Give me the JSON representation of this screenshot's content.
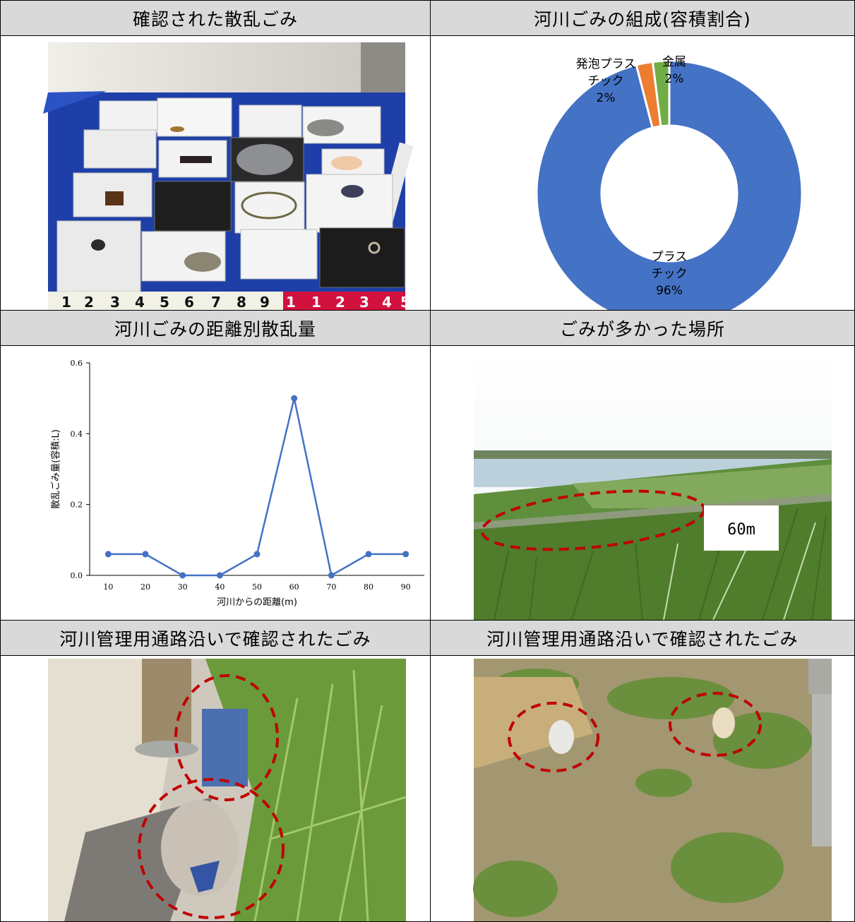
{
  "headers": {
    "r1_left": "確認された散乱ごみ",
    "r1_right": "河川ごみの組成(容積割合)",
    "r2_left": "河川ごみの距離別散乱量",
    "r2_right": "ごみが多かった場所",
    "r3_left": "河川管理用通路沿いで確認されたごみ",
    "r3_right": "河川管理用通路沿いで確認されたごみ"
  },
  "photo_labels": {
    "ruler_digits": [
      "1",
      "2",
      "3",
      "4",
      "5",
      "6",
      "7",
      "8",
      "9",
      "1",
      "1",
      "2",
      "3",
      "4",
      "5"
    ],
    "place_tag": "60m"
  },
  "colors": {
    "header_bg": "#d9d9d9",
    "plastic": "#4472c4",
    "foam": "#ed7d31",
    "metal": "#70ad47",
    "line": "#4472c4",
    "circle": "#c00000"
  },
  "chart_data": [
    {
      "type": "pie",
      "donut": true,
      "title": "",
      "slices": [
        {
          "label_lines": [
            "プラス",
            "チック",
            "96%"
          ],
          "value": 96,
          "color": "#4472c4"
        },
        {
          "label_lines": [
            "発泡プラス",
            "チック",
            "2%"
          ],
          "value": 2,
          "color": "#ed7d31"
        },
        {
          "label_lines": [
            "金属",
            "2%"
          ],
          "value": 2,
          "color": "#70ad47"
        }
      ]
    },
    {
      "type": "line",
      "title": "",
      "xlabel": "河川からの距離(m)",
      "ylabel": "散乱ごみ量(容積:L)",
      "x": [
        10,
        20,
        30,
        40,
        50,
        60,
        70,
        80,
        90
      ],
      "series": [
        {
          "values": [
            0.06,
            0.06,
            0.0,
            0.0,
            0.06,
            0.5,
            0.0,
            0.06,
            0.06
          ]
        }
      ],
      "ylim": [
        0,
        0.6
      ],
      "yticks": [
        "0.0",
        "0.2",
        "0.4",
        "0.6"
      ],
      "xticks": [
        "10",
        "20",
        "30",
        "40",
        "50",
        "60",
        "70",
        "80",
        "90"
      ],
      "grid": false,
      "legend": "none"
    }
  ]
}
